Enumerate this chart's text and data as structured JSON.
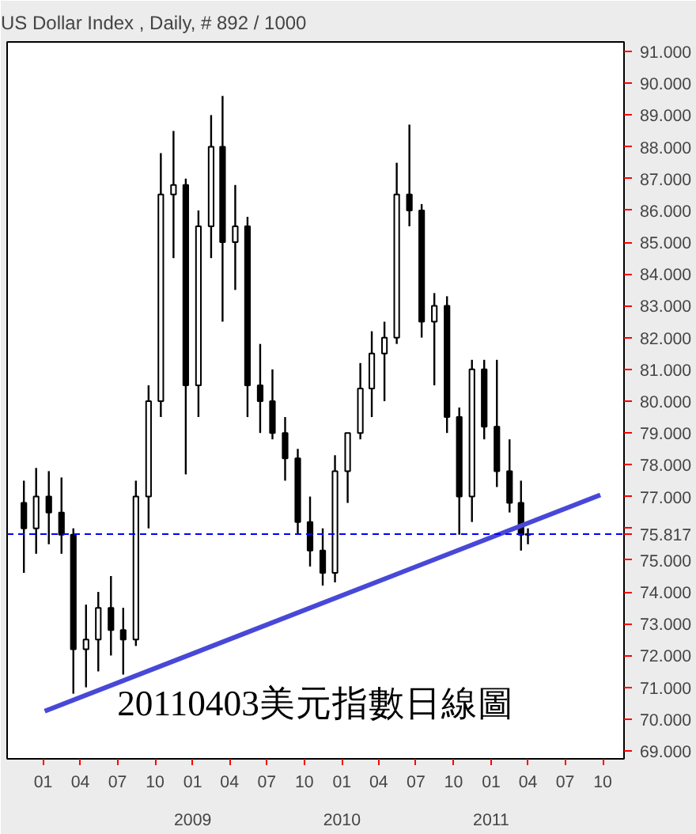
{
  "chart_data": {
    "type": "candlestick",
    "title": "US Dollar Index , Daily, # 892 / 1000",
    "annotations": [
      "20110403美元指數日線圖"
    ],
    "x": [
      "2007-11-15",
      "2007-12-15",
      "2008-01-15",
      "2008-02-15",
      "2008-03-15",
      "2008-04-15",
      "2008-05-15",
      "2008-06-15",
      "2008-07-15",
      "2008-08-15",
      "2008-09-15",
      "2008-10-15",
      "2008-11-15",
      "2008-12-15",
      "2009-01-15",
      "2009-02-15",
      "2009-03-15",
      "2009-04-15",
      "2009-05-15",
      "2009-06-15",
      "2009-07-15",
      "2009-08-15",
      "2009-09-15",
      "2009-10-15",
      "2009-11-15",
      "2009-12-15",
      "2010-01-15",
      "2010-02-15",
      "2010-03-15",
      "2010-04-15",
      "2010-05-15",
      "2010-06-15",
      "2010-07-15",
      "2010-08-15",
      "2010-09-15",
      "2010-10-15",
      "2010-11-15",
      "2010-12-15",
      "2011-01-15",
      "2011-02-15",
      "2011-03-15",
      "2011-04-01"
    ],
    "ohlc": [
      [
        76.8,
        77.5,
        74.6,
        76.0
      ],
      [
        76.0,
        77.9,
        75.2,
        77.0
      ],
      [
        77.0,
        77.8,
        75.5,
        76.5
      ],
      [
        76.5,
        77.6,
        75.2,
        75.8
      ],
      [
        75.8,
        76.0,
        70.8,
        72.2
      ],
      [
        72.2,
        73.6,
        71.0,
        72.5
      ],
      [
        72.5,
        74.0,
        71.5,
        73.5
      ],
      [
        73.5,
        74.5,
        72.0,
        72.8
      ],
      [
        72.8,
        73.5,
        71.4,
        72.5
      ],
      [
        72.5,
        77.5,
        72.3,
        77.0
      ],
      [
        77.0,
        80.5,
        76.0,
        80.0
      ],
      [
        80.0,
        87.8,
        79.5,
        86.5
      ],
      [
        86.5,
        88.5,
        84.5,
        86.8
      ],
      [
        86.8,
        87.0,
        77.7,
        80.5
      ],
      [
        80.5,
        86.0,
        79.5,
        85.5
      ],
      [
        85.5,
        89.0,
        84.5,
        88.0
      ],
      [
        88.0,
        89.6,
        82.5,
        85.0
      ],
      [
        85.0,
        86.8,
        83.5,
        85.5
      ],
      [
        85.5,
        85.8,
        79.5,
        80.5
      ],
      [
        80.5,
        81.8,
        79.0,
        80.0
      ],
      [
        80.0,
        81.0,
        78.8,
        79.0
      ],
      [
        79.0,
        79.5,
        77.5,
        78.2
      ],
      [
        78.2,
        78.5,
        75.8,
        76.2
      ],
      [
        76.2,
        77.0,
        74.8,
        75.3
      ],
      [
        75.3,
        76.0,
        74.2,
        74.6
      ],
      [
        74.6,
        78.3,
        74.3,
        77.8
      ],
      [
        77.8,
        79.0,
        76.8,
        79.0
      ],
      [
        79.0,
        81.2,
        78.8,
        80.4
      ],
      [
        80.4,
        82.2,
        79.5,
        81.5
      ],
      [
        81.5,
        82.5,
        80.0,
        82.0
      ],
      [
        82.0,
        87.5,
        81.8,
        86.5
      ],
      [
        86.5,
        88.7,
        85.5,
        86.0
      ],
      [
        86.0,
        86.2,
        82.0,
        82.5
      ],
      [
        82.5,
        83.4,
        80.5,
        83.0
      ],
      [
        83.0,
        83.3,
        79.0,
        79.5
      ],
      [
        79.5,
        79.8,
        75.8,
        77.0
      ],
      [
        77.0,
        81.3,
        76.2,
        81.0
      ],
      [
        81.0,
        81.3,
        78.8,
        79.2
      ],
      [
        79.2,
        81.3,
        77.3,
        77.8
      ],
      [
        77.8,
        78.8,
        76.5,
        76.8
      ],
      [
        76.8,
        77.5,
        75.3,
        75.8
      ],
      [
        75.8,
        76.0,
        75.5,
        75.817
      ]
    ],
    "color": "#000000",
    "series": [
      {
        "type": "line",
        "x": [
          "2008-01-05",
          "2011-09-25"
        ],
        "values": [
          70.25,
          77.05
        ],
        "color": "#4848d8"
      }
    ],
    "ref_lines": [
      {
        "axis": "y",
        "value": 75.817,
        "label": "75.817",
        "color": "#0000ff",
        "line_style": "dashed"
      }
    ],
    "xlim": [
      "2007-10-05",
      "2011-11-22"
    ],
    "xticks": [
      {
        "value": "2008-01-01",
        "label": "01"
      },
      {
        "value": "2008-04-01",
        "label": "04"
      },
      {
        "value": "2008-07-01",
        "label": "07"
      },
      {
        "value": "2008-10-01",
        "label": "10"
      },
      {
        "value": "2009-01-01",
        "label": "01\n\n2009"
      },
      {
        "value": "2009-04-01",
        "label": "04"
      },
      {
        "value": "2009-07-01",
        "label": "07"
      },
      {
        "value": "2009-10-01",
        "label": "10"
      },
      {
        "value": "2010-01-01",
        "label": "01\n\n2010"
      },
      {
        "value": "2010-04-01",
        "label": "04"
      },
      {
        "value": "2010-07-01",
        "label": "07"
      },
      {
        "value": "2010-10-01",
        "label": "10"
      },
      {
        "value": "2011-01-01",
        "label": "01\n\n2011"
      },
      {
        "value": "2011-04-01",
        "label": "04"
      },
      {
        "value": "2011-07-01",
        "label": "07"
      },
      {
        "value": "2011-10-01",
        "label": "10"
      }
    ],
    "ylim": [
      68.75,
      91.3
    ],
    "yticks": [
      {
        "value": 69,
        "label": "69.000"
      },
      {
        "value": 70,
        "label": "70.000"
      },
      {
        "value": 71,
        "label": "71.000"
      },
      {
        "value": 72,
        "label": "72.000"
      },
      {
        "value": 73,
        "label": "73.000"
      },
      {
        "value": 74,
        "label": "74.000"
      },
      {
        "value": 75,
        "label": "75.000"
      },
      {
        "value": 76,
        "label": null
      },
      {
        "value": 77,
        "label": "77.000"
      },
      {
        "value": 78,
        "label": "78.000"
      },
      {
        "value": 79,
        "label": "79.000"
      },
      {
        "value": 80,
        "label": "80.000"
      },
      {
        "value": 81,
        "label": "81.000"
      },
      {
        "value": 82,
        "label": "82.000"
      },
      {
        "value": 83,
        "label": "83.000"
      },
      {
        "value": 84,
        "label": "84.000"
      },
      {
        "value": 85,
        "label": "85.000"
      },
      {
        "value": 86,
        "label": "86.000"
      },
      {
        "value": 87,
        "label": "87.000"
      },
      {
        "value": 88,
        "label": "88.000"
      },
      {
        "value": 89,
        "label": "89.000"
      },
      {
        "value": 90,
        "label": "90.000"
      },
      {
        "value": 91,
        "label": "91.000"
      }
    ],
    "grid": false
  }
}
